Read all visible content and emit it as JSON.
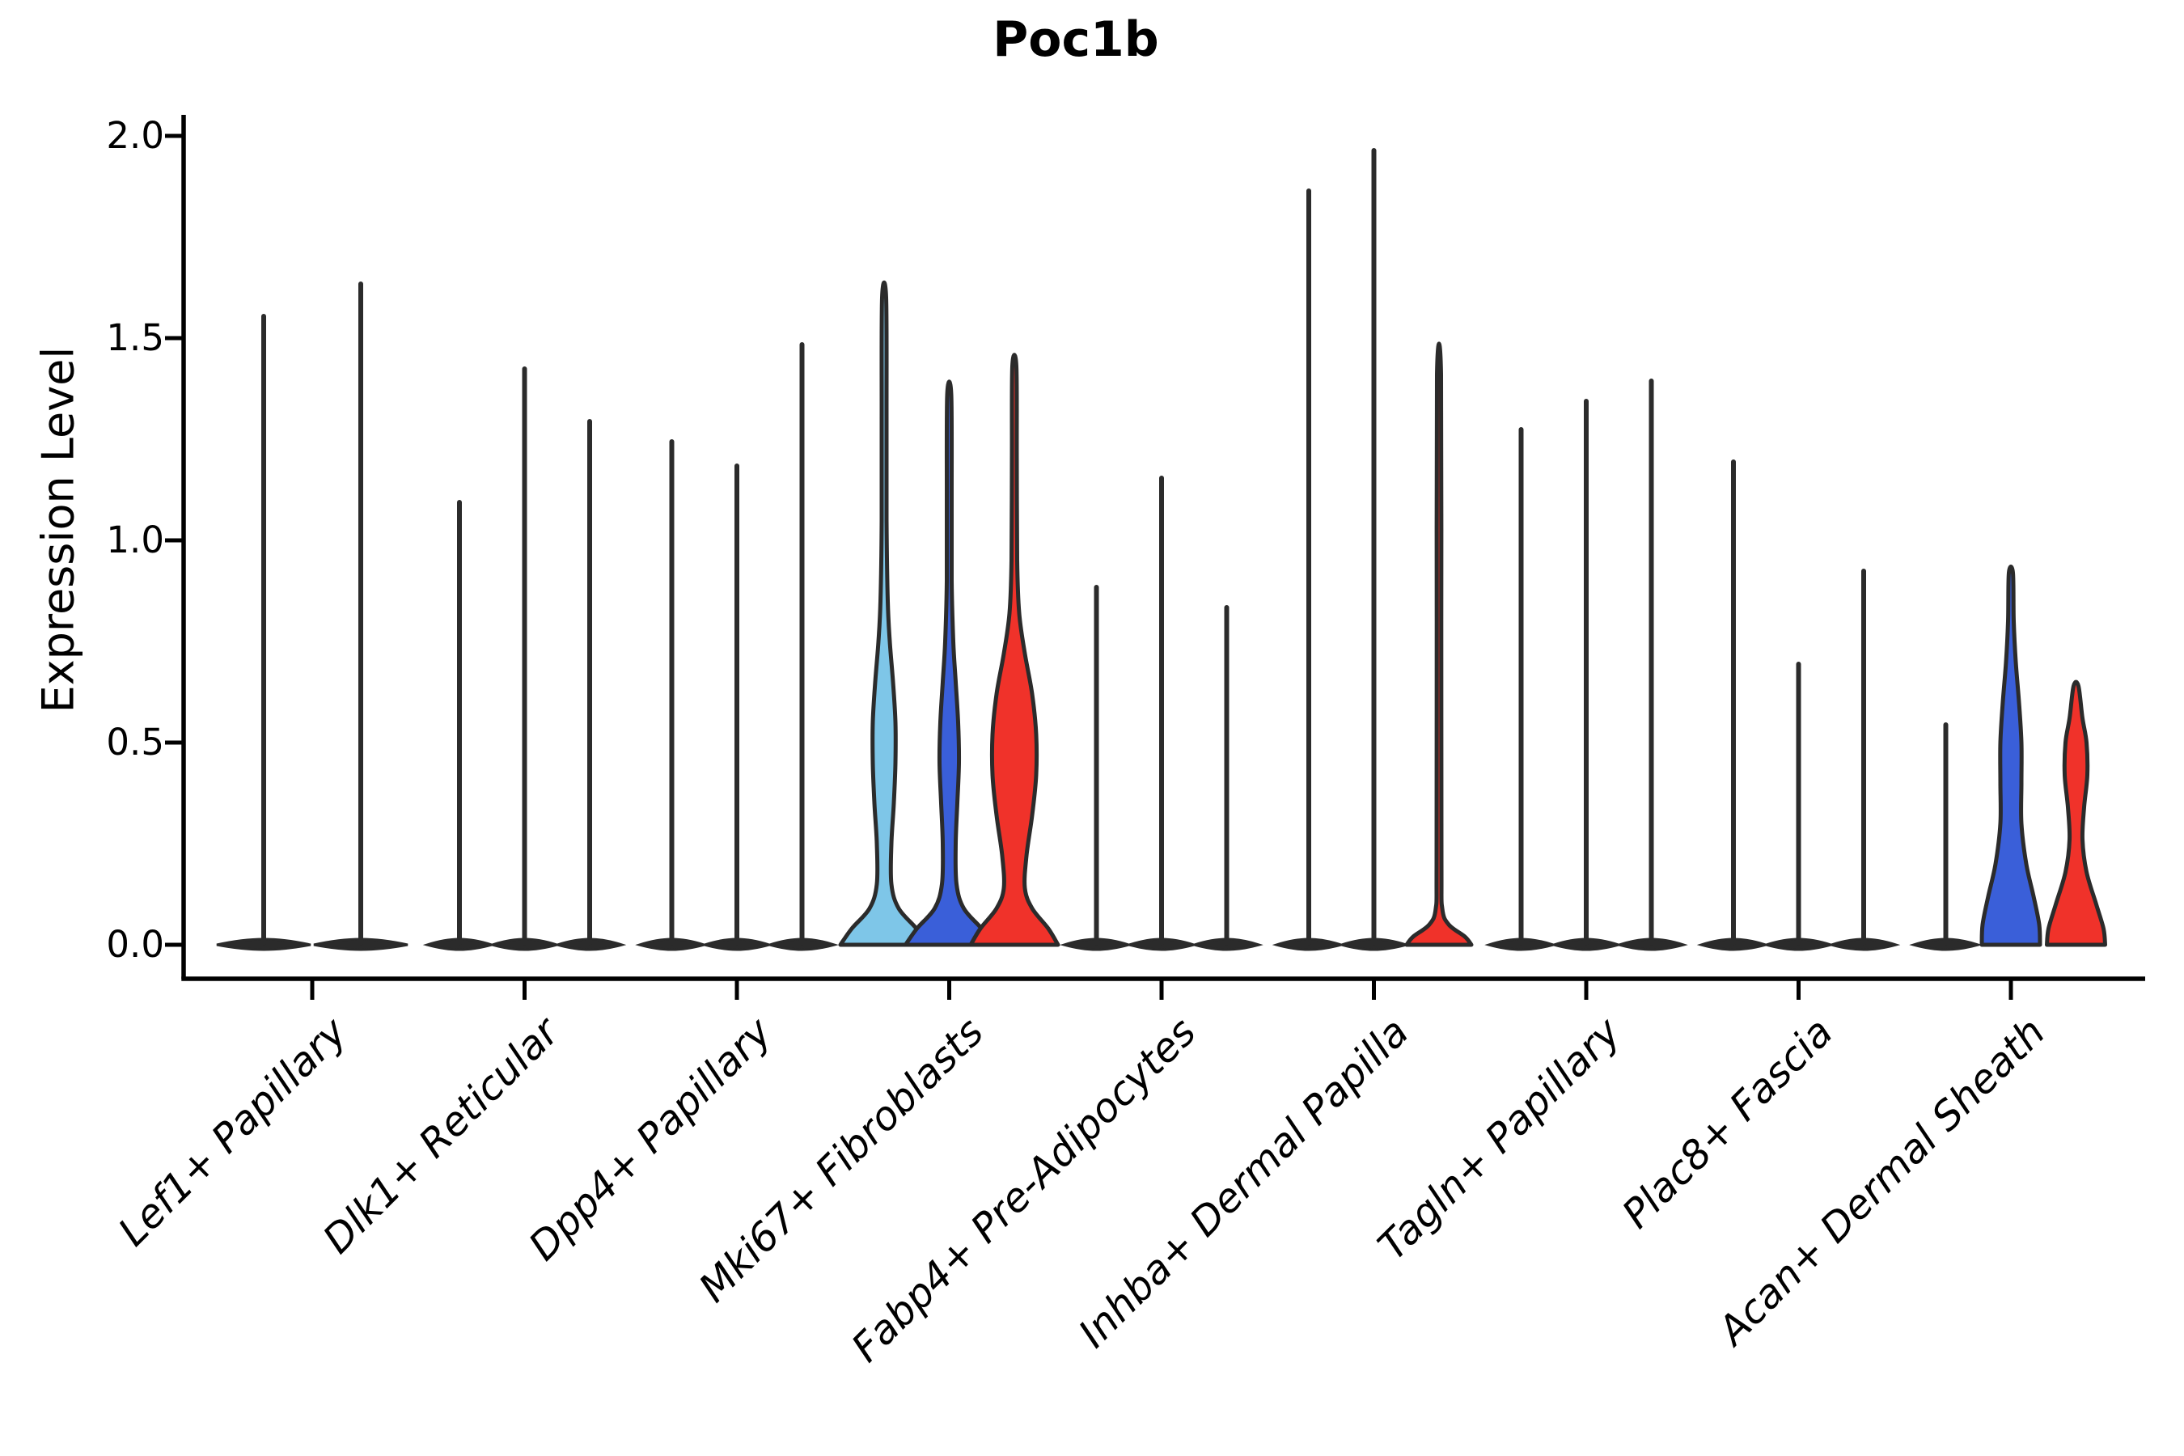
{
  "chart_data": {
    "type": "violin",
    "title": "Poc1b",
    "ylabel": "Expression Level",
    "xlabel": "",
    "ylim": [
      -0.08,
      2.05
    ],
    "yticks": [
      0.0,
      0.5,
      1.0,
      1.5,
      2.0
    ],
    "ytick_labels": [
      "0.0",
      "0.5",
      "1.0",
      "1.5",
      "2.0"
    ],
    "grid": false,
    "legend": "none",
    "palette": {
      "lightblue": "#7EC6E8",
      "blue": "#3A5FD9",
      "red": "#F0322A",
      "ink": "#2B2B2B"
    },
    "categories": [
      "Lef1+ Papillary",
      "Dlk1+ Reticular",
      "Dpp4+ Papillary",
      "Mki67+ Fibroblasts",
      "Fabp4+ Pre-Adipocytes",
      "Inhba+ Dermal Papilla",
      "Tagln+ Papillary",
      "Plac8+ Fascia",
      "Acan+ Dermal Sheath"
    ],
    "groups": [
      {
        "label": "Lef1+ Papillary",
        "violins": [
          {
            "max": 1.56,
            "style": "spike"
          },
          {
            "max": 1.64,
            "style": "spike"
          }
        ]
      },
      {
        "label": "Dlk1+ Reticular",
        "violins": [
          {
            "max": 1.1,
            "style": "spike"
          },
          {
            "max": 1.43,
            "style": "spike"
          },
          {
            "max": 1.3,
            "style": "spike"
          }
        ]
      },
      {
        "label": "Dpp4+ Papillary",
        "violins": [
          {
            "max": 1.25,
            "style": "spike"
          },
          {
            "max": 1.19,
            "style": "spike"
          },
          {
            "max": 1.49,
            "style": "spike"
          }
        ]
      },
      {
        "label": "Mki67+ Fibroblasts",
        "violins": [
          {
            "max": 1.6,
            "style": "shaped",
            "color": "lightblue",
            "profile": [
              [
                0,
                54
              ],
              [
                0.04,
                40
              ],
              [
                0.09,
                18
              ],
              [
                0.15,
                9
              ],
              [
                0.25,
                9
              ],
              [
                0.35,
                12
              ],
              [
                0.45,
                14
              ],
              [
                0.55,
                14
              ],
              [
                0.65,
                11
              ],
              [
                0.75,
                7
              ],
              [
                0.85,
                4.5
              ],
              [
                1.05,
                3
              ],
              [
                1.3,
                3
              ],
              [
                1.6,
                2.5
              ]
            ]
          },
          {
            "max": 1.36,
            "style": "shaped",
            "color": "blue",
            "profile": [
              [
                0,
                54
              ],
              [
                0.04,
                40
              ],
              [
                0.09,
                18
              ],
              [
                0.15,
                9
              ],
              [
                0.25,
                8
              ],
              [
                0.35,
                10
              ],
              [
                0.45,
                12
              ],
              [
                0.55,
                11
              ],
              [
                0.65,
                8
              ],
              [
                0.75,
                5
              ],
              [
                0.9,
                3
              ],
              [
                1.1,
                3
              ],
              [
                1.36,
                2.5
              ]
            ]
          },
          {
            "max": 1.43,
            "style": "shaped",
            "color": "red",
            "profile": [
              [
                0,
                54
              ],
              [
                0.04,
                42
              ],
              [
                0.09,
                22
              ],
              [
                0.14,
                13
              ],
              [
                0.22,
                15
              ],
              [
                0.32,
                22
              ],
              [
                0.42,
                27
              ],
              [
                0.52,
                27
              ],
              [
                0.62,
                22
              ],
              [
                0.72,
                13
              ],
              [
                0.82,
                6
              ],
              [
                0.95,
                3.5
              ],
              [
                1.2,
                3
              ],
              [
                1.43,
                2.5
              ]
            ]
          }
        ]
      },
      {
        "label": "Fabp4+ Pre-Adipocytes",
        "violins": [
          {
            "max": 0.89,
            "style": "spike"
          },
          {
            "max": 1.16,
            "style": "spike"
          },
          {
            "max": 0.84,
            "style": "spike"
          }
        ]
      },
      {
        "label": "Inhba+ Dermal Papilla",
        "violins": [
          {
            "max": 1.87,
            "style": "spike"
          },
          {
            "max": 1.97,
            "style": "spike"
          },
          {
            "max": 1.41,
            "style": "shaped",
            "color": "red",
            "profile": [
              [
                0,
                40
              ],
              [
                0.02,
                32
              ],
              [
                0.05,
                12
              ],
              [
                0.09,
                4
              ],
              [
                0.2,
                3
              ],
              [
                0.8,
                2.8
              ],
              [
                1.41,
                2.5
              ]
            ]
          }
        ]
      },
      {
        "label": "Tagln+ Papillary",
        "violins": [
          {
            "max": 1.28,
            "style": "spike"
          },
          {
            "max": 1.35,
            "style": "spike"
          },
          {
            "max": 1.4,
            "style": "spike"
          }
        ]
      },
      {
        "label": "Plac8+ Fascia",
        "violins": [
          {
            "max": 1.2,
            "style": "spike"
          },
          {
            "max": 0.7,
            "style": "spike"
          },
          {
            "max": 0.93,
            "style": "spike"
          }
        ]
      },
      {
        "label": "Acan+ Dermal Sheath",
        "violins": [
          {
            "max": 0.55,
            "style": "spike"
          },
          {
            "max": 0.92,
            "style": "shaped",
            "color": "blue",
            "profile": [
              [
                0,
                36
              ],
              [
                0.05,
                35
              ],
              [
                0.12,
                28
              ],
              [
                0.2,
                19
              ],
              [
                0.3,
                13
              ],
              [
                0.4,
                13
              ],
              [
                0.5,
                13
              ],
              [
                0.6,
                10
              ],
              [
                0.7,
                6
              ],
              [
                0.8,
                3.5
              ],
              [
                0.92,
                2.5
              ]
            ]
          },
          {
            "max": 0.64,
            "style": "shaped",
            "color": "red",
            "profile": [
              [
                0,
                36
              ],
              [
                0.04,
                34
              ],
              [
                0.1,
                25
              ],
              [
                0.18,
                13
              ],
              [
                0.26,
                8
              ],
              [
                0.34,
                10
              ],
              [
                0.42,
                14
              ],
              [
                0.5,
                13
              ],
              [
                0.56,
                8
              ],
              [
                0.64,
                3
              ]
            ]
          }
        ]
      }
    ]
  }
}
